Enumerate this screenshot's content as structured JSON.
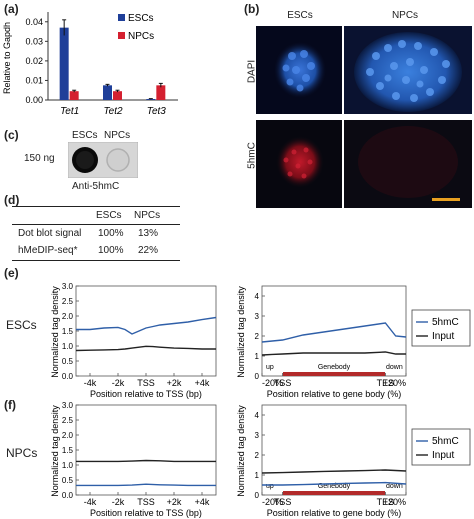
{
  "panel_labels": {
    "a": "(a)",
    "b": "(b)",
    "c": "(c)",
    "d": "(d)",
    "e": "(e)",
    "f": "(f)"
  },
  "colors": {
    "escs": "#1f3f99",
    "npcs": "#d42030",
    "blue_line": "#2f5fa8",
    "black_line": "#222222",
    "gene_bar": "#b22a2a",
    "scale_bar": "#e8a020"
  },
  "panel_a": {
    "ylabel": "Relative to Gapdh",
    "categories": [
      "Tet1",
      "Tet2",
      "Tet3"
    ],
    "legend": [
      "ESCs",
      "NPCs"
    ],
    "yticks": [
      "0.00",
      "0.01",
      "0.02",
      "0.03",
      "0.04"
    ]
  },
  "panel_b": {
    "col_labels": [
      "ESCs",
      "NPCs"
    ],
    "row_labels": [
      "DAPI",
      "5hmC"
    ]
  },
  "panel_c": {
    "col_labels": [
      "ESCs",
      "NPCs"
    ],
    "row_label": "150 ng",
    "caption": "Anti-5hmC"
  },
  "panel_d": {
    "headers": [
      "ESCs",
      "NPCs"
    ],
    "rows": [
      {
        "label": "Dot blot signal",
        "escs": "100%",
        "npcs": "13%"
      },
      {
        "label": "hMeDIP-seq*",
        "escs": "100%",
        "npcs": "22%"
      }
    ]
  },
  "panel_e": {
    "row_label": "ESCs",
    "ylabel": "Normalized tag density",
    "left_xlabel": "Position relative to TSS (bp)",
    "left_xticks": [
      "-4k",
      "-2k",
      "TSS",
      "+2k",
      "+4k"
    ],
    "right_xlabel": "Position relative to gene body (%)",
    "right_xticks": [
      "-20%",
      "TSS",
      "TES",
      "+20%"
    ],
    "gene_labels": [
      "up",
      "Genebody",
      "down"
    ],
    "left_yticks": [
      "0.0",
      "0.5",
      "1.0",
      "1.5",
      "2.0",
      "2.5",
      "3.0"
    ],
    "right_yticks": [
      "0",
      "1",
      "2",
      "3",
      "4"
    ],
    "legend": [
      "5hmC",
      "Input"
    ]
  },
  "panel_f": {
    "row_label": "NPCs",
    "ylabel": "Normalized tag density",
    "left_xlabel": "Position relative to TSS (bp)",
    "left_xticks": [
      "-4k",
      "-2k",
      "TSS",
      "+2k",
      "+4k"
    ],
    "right_xlabel": "Position relative to gene body (%)",
    "right_xticks": [
      "-20%",
      "TSS",
      "TES",
      "+20%"
    ],
    "gene_labels": [
      "up",
      "Genebody",
      "down"
    ],
    "left_yticks": [
      "0.0",
      "0.5",
      "1.0",
      "1.5",
      "2.0",
      "2.5",
      "3.0"
    ],
    "right_yticks": [
      "0",
      "1",
      "2",
      "3",
      "4"
    ],
    "legend": [
      "5hmC",
      "Input"
    ]
  },
  "chart_data": [
    {
      "type": "bar",
      "categories": [
        "Tet1",
        "Tet2",
        "Tet3"
      ],
      "series": [
        {
          "name": "ESCs",
          "values": [
            0.037,
            0.0075,
            0.0005
          ],
          "errors": [
            0.004,
            0.0005,
            0.0002
          ]
        },
        {
          "name": "NPCs",
          "values": [
            0.0045,
            0.0045,
            0.0075
          ],
          "errors": [
            0.0005,
            0.0005,
            0.001
          ]
        }
      ],
      "ylabel": "Relative to Gapdh",
      "ylim": [
        0,
        0.045
      ],
      "legend": "top-right"
    },
    {
      "type": "line",
      "x": [
        -5000,
        -4000,
        -3000,
        -2000,
        -1500,
        -1000,
        -500,
        0,
        500,
        1000,
        2000,
        3000,
        4000,
        5000
      ],
      "series": [
        {
          "name": "5hmC",
          "values": [
            1.55,
            1.55,
            1.6,
            1.62,
            1.55,
            1.4,
            1.5,
            1.6,
            1.65,
            1.7,
            1.75,
            1.8,
            1.88,
            1.95
          ]
        },
        {
          "name": "Input",
          "values": [
            0.85,
            0.86,
            0.87,
            0.88,
            0.9,
            0.93,
            0.96,
            0.99,
            0.98,
            0.96,
            0.93,
            0.92,
            0.9,
            0.9
          ]
        }
      ],
      "ylim": [
        0,
        3
      ]
    },
    {
      "type": "line",
      "x": [
        -20,
        -10,
        0,
        20,
        40,
        60,
        80,
        100,
        110,
        120
      ],
      "series": [
        {
          "name": "5hmC",
          "values": [
            1.7,
            1.75,
            1.8,
            2.05,
            2.2,
            2.35,
            2.5,
            2.65,
            2.0,
            1.95
          ]
        },
        {
          "name": "Input",
          "values": [
            1.05,
            1.08,
            1.1,
            1.15,
            1.15,
            1.15,
            1.15,
            1.2,
            1.1,
            1.1
          ]
        }
      ],
      "ylim": [
        0,
        4.5
      ]
    },
    {
      "type": "line",
      "x": [
        -5000,
        -4000,
        -3000,
        -2000,
        -1000,
        0,
        1000,
        2000,
        3000,
        4000,
        5000
      ],
      "series": [
        {
          "name": "5hmC",
          "values": [
            0.32,
            0.32,
            0.32,
            0.32,
            0.33,
            0.36,
            0.34,
            0.33,
            0.32,
            0.32,
            0.32
          ]
        },
        {
          "name": "Input",
          "values": [
            1.12,
            1.12,
            1.12,
            1.12,
            1.13,
            1.15,
            1.14,
            1.12,
            1.12,
            1.12,
            1.12
          ]
        }
      ],
      "ylim": [
        0,
        3
      ]
    },
    {
      "type": "line",
      "x": [
        -20,
        0,
        20,
        40,
        60,
        80,
        100,
        120
      ],
      "series": [
        {
          "name": "5hmC",
          "values": [
            0.5,
            0.5,
            0.52,
            0.55,
            0.58,
            0.6,
            0.62,
            0.55
          ]
        },
        {
          "name": "Input",
          "values": [
            1.1,
            1.12,
            1.15,
            1.18,
            1.2,
            1.22,
            1.25,
            1.2
          ]
        }
      ],
      "ylim": [
        0,
        4.5
      ]
    }
  ]
}
